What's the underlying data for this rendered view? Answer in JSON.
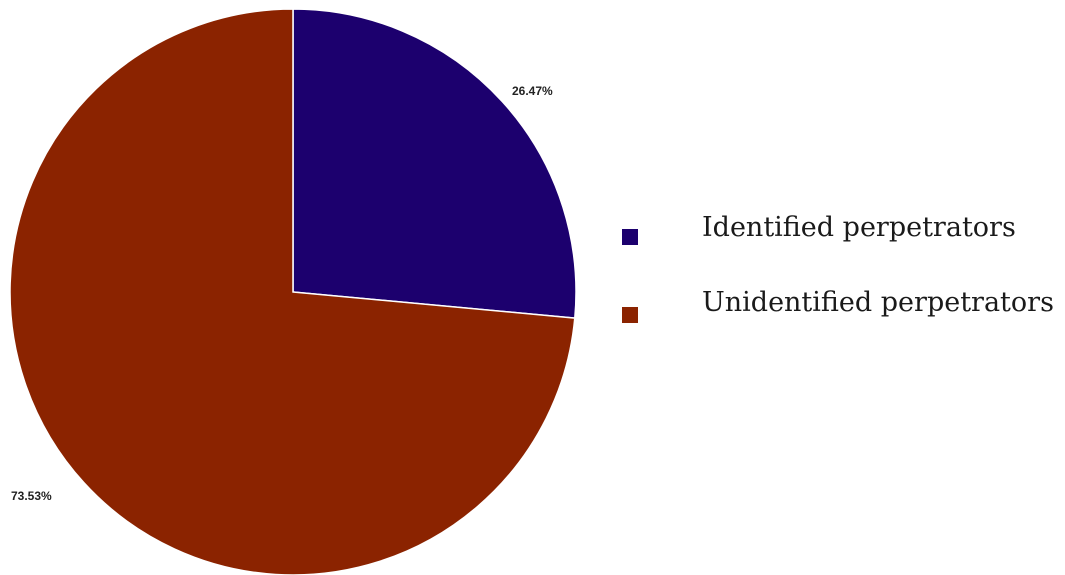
{
  "chart_data": {
    "type": "pie",
    "title": "",
    "start_angle_deg": 0,
    "direction": "clockwise",
    "slices": [
      {
        "label": "Identified perpetrators",
        "value": 26.47,
        "display": "26.47%",
        "color": "#1c006e"
      },
      {
        "label": "Unidentified perpetrators",
        "value": 73.53,
        "display": "73.53%",
        "color": "#8b2300"
      }
    ],
    "legend_position": "right"
  }
}
